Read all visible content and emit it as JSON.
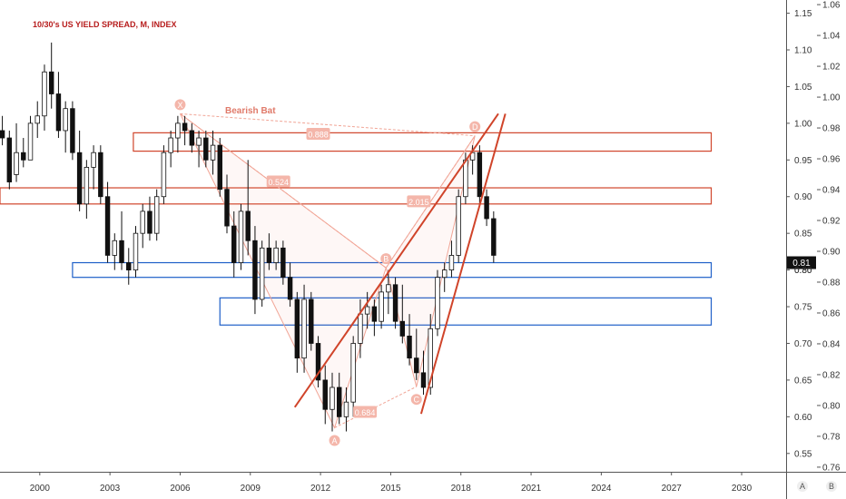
{
  "title": "10/30's US YIELD SPREAD, M, INDEX",
  "chart_data": {
    "type": "candlestick",
    "x_axis": {
      "ticks": [
        "2000",
        "2003",
        "2006",
        "2009",
        "2012",
        "2015",
        "2018",
        "2021",
        "2024",
        "2027",
        "2030"
      ],
      "range": [
        1998.3,
        2031.9
      ]
    },
    "left_scale": {
      "ticks": [
        0.55,
        0.6,
        0.65,
        0.7,
        0.75,
        0.8,
        0.85,
        0.9,
        0.95,
        1.0,
        1.05,
        1.1,
        1.15
      ],
      "range": [
        0.525,
        1.168
      ]
    },
    "right_scale": {
      "ticks": [
        0.76,
        0.78,
        0.8,
        0.82,
        0.84,
        0.86,
        0.88,
        0.9,
        0.92,
        0.94,
        0.96,
        0.98,
        1.0,
        1.02,
        1.04,
        1.06
      ],
      "range": [
        0.757,
        1.063
      ]
    },
    "last_price": "0.81",
    "overlay_price_tag": "0.80",
    "candles": [
      [
        1998.4,
        0.99,
        1.01,
        0.97,
        0.98
      ],
      [
        1998.7,
        0.98,
        0.99,
        0.91,
        0.92
      ],
      [
        1999.0,
        0.93,
        1.0,
        0.92,
        0.96
      ],
      [
        1999.3,
        0.96,
        0.98,
        0.94,
        0.95
      ],
      [
        1999.6,
        0.95,
        1.01,
        0.95,
        1.0
      ],
      [
        1999.9,
        1.0,
        1.03,
        0.98,
        1.01
      ],
      [
        2000.2,
        1.01,
        1.08,
        0.99,
        1.07
      ],
      [
        2000.5,
        1.07,
        1.11,
        1.02,
        1.04
      ],
      [
        2000.8,
        1.04,
        1.07,
        0.98,
        0.99
      ],
      [
        2001.1,
        0.99,
        1.03,
        0.96,
        1.02
      ],
      [
        2001.4,
        1.02,
        1.03,
        0.95,
        0.96
      ],
      [
        2001.7,
        0.96,
        0.99,
        0.88,
        0.89
      ],
      [
        2002.0,
        0.89,
        0.95,
        0.87,
        0.94
      ],
      [
        2002.3,
        0.94,
        0.97,
        0.91,
        0.96
      ],
      [
        2002.6,
        0.96,
        0.97,
        0.89,
        0.9
      ],
      [
        2002.9,
        0.9,
        0.92,
        0.81,
        0.82
      ],
      [
        2003.2,
        0.82,
        0.85,
        0.8,
        0.84
      ],
      [
        2003.5,
        0.84,
        0.88,
        0.8,
        0.81
      ],
      [
        2003.8,
        0.81,
        0.83,
        0.78,
        0.8
      ],
      [
        2004.1,
        0.8,
        0.86,
        0.79,
        0.85
      ],
      [
        2004.4,
        0.85,
        0.89,
        0.83,
        0.88
      ],
      [
        2004.7,
        0.88,
        0.9,
        0.84,
        0.85
      ],
      [
        2005.0,
        0.85,
        0.91,
        0.84,
        0.9
      ],
      [
        2005.3,
        0.9,
        0.97,
        0.89,
        0.96
      ],
      [
        2005.6,
        0.96,
        0.99,
        0.94,
        0.98
      ],
      [
        2005.9,
        0.98,
        1.01,
        0.96,
        1.0
      ],
      [
        2006.2,
        1.0,
        1.01,
        0.97,
        0.99
      ],
      [
        2006.5,
        0.99,
        1.0,
        0.96,
        0.97
      ],
      [
        2006.8,
        0.97,
        0.99,
        0.94,
        0.98
      ],
      [
        2007.1,
        0.98,
        0.99,
        0.94,
        0.95
      ],
      [
        2007.4,
        0.95,
        0.99,
        0.93,
        0.97
      ],
      [
        2007.7,
        0.97,
        0.98,
        0.9,
        0.91
      ],
      [
        2008.0,
        0.91,
        0.93,
        0.85,
        0.86
      ],
      [
        2008.3,
        0.86,
        0.88,
        0.79,
        0.81
      ],
      [
        2008.6,
        0.81,
        0.89,
        0.8,
        0.88
      ],
      [
        2008.9,
        0.88,
        0.95,
        0.82,
        0.84
      ],
      [
        2009.2,
        0.84,
        0.86,
        0.74,
        0.76
      ],
      [
        2009.5,
        0.76,
        0.84,
        0.75,
        0.83
      ],
      [
        2009.8,
        0.83,
        0.85,
        0.8,
        0.81
      ],
      [
        2010.1,
        0.81,
        0.84,
        0.8,
        0.83
      ],
      [
        2010.4,
        0.83,
        0.84,
        0.78,
        0.79
      ],
      [
        2010.7,
        0.79,
        0.81,
        0.75,
        0.76
      ],
      [
        2011.0,
        0.76,
        0.77,
        0.66,
        0.68
      ],
      [
        2011.3,
        0.68,
        0.78,
        0.66,
        0.76
      ],
      [
        2011.6,
        0.76,
        0.77,
        0.69,
        0.7
      ],
      [
        2011.9,
        0.7,
        0.71,
        0.64,
        0.65
      ],
      [
        2012.2,
        0.65,
        0.67,
        0.59,
        0.61
      ],
      [
        2012.5,
        0.61,
        0.66,
        0.58,
        0.64
      ],
      [
        2012.8,
        0.64,
        0.66,
        0.59,
        0.6
      ],
      [
        2013.1,
        0.6,
        0.64,
        0.58,
        0.62
      ],
      [
        2013.4,
        0.62,
        0.71,
        0.6,
        0.7
      ],
      [
        2013.7,
        0.7,
        0.76,
        0.68,
        0.74
      ],
      [
        2014.0,
        0.74,
        0.77,
        0.72,
        0.75
      ],
      [
        2014.3,
        0.75,
        0.76,
        0.71,
        0.73
      ],
      [
        2014.6,
        0.73,
        0.78,
        0.72,
        0.77
      ],
      [
        2014.9,
        0.77,
        0.8,
        0.74,
        0.78
      ],
      [
        2015.2,
        0.78,
        0.79,
        0.72,
        0.73
      ],
      [
        2015.5,
        0.73,
        0.78,
        0.7,
        0.71
      ],
      [
        2015.8,
        0.71,
        0.74,
        0.67,
        0.68
      ],
      [
        2016.1,
        0.68,
        0.72,
        0.65,
        0.66
      ],
      [
        2016.4,
        0.66,
        0.69,
        0.63,
        0.64
      ],
      [
        2016.7,
        0.64,
        0.74,
        0.63,
        0.72
      ],
      [
        2017.0,
        0.72,
        0.8,
        0.71,
        0.79
      ],
      [
        2017.3,
        0.79,
        0.81,
        0.77,
        0.8
      ],
      [
        2017.6,
        0.8,
        0.84,
        0.79,
        0.82
      ],
      [
        2017.9,
        0.82,
        0.91,
        0.81,
        0.9
      ],
      [
        2018.2,
        0.9,
        0.96,
        0.89,
        0.95
      ],
      [
        2018.5,
        0.95,
        0.97,
        0.93,
        0.96
      ],
      [
        2018.8,
        0.96,
        0.97,
        0.89,
        0.9
      ],
      [
        2019.1,
        0.9,
        0.91,
        0.86,
        0.87
      ],
      [
        2019.4,
        0.87,
        0.88,
        0.81,
        0.82
      ]
    ],
    "horizontal_zones": [
      {
        "color": "#d0442a",
        "y_from": 0.962,
        "y_to": 0.987,
        "x_from": 2004.0,
        "x_to": 2028.7
      },
      {
        "color": "#d0442a",
        "y_from": 0.89,
        "y_to": 0.912,
        "x_from": 1998.3,
        "x_to": 2028.7
      },
      {
        "color": "#1e5fc8",
        "y_from": 0.79,
        "y_to": 0.81,
        "x_from": 2001.4,
        "x_to": 2028.7
      },
      {
        "color": "#1e5fc8",
        "y_from": 0.725,
        "y_to": 0.762,
        "x_from": 2007.7,
        "x_to": 2028.7
      }
    ],
    "trend_lines": [
      {
        "x1": 2010.9,
        "y1": 0.613,
        "x2": 2019.6,
        "y2": 1.013
      },
      {
        "x1": 2016.3,
        "y1": 0.604,
        "x2": 2019.9,
        "y2": 1.013
      }
    ],
    "harmonic": {
      "name": "Bearish Bat",
      "points": [
        {
          "label": "X",
          "x": 2006.0,
          "y": 1.013
        },
        {
          "label": "A",
          "x": 2012.6,
          "y": 0.585
        },
        {
          "label": "B",
          "x": 2014.8,
          "y": 0.803
        },
        {
          "label": "C",
          "x": 2016.1,
          "y": 0.641
        },
        {
          "label": "D",
          "x": 2018.6,
          "y": 0.983
        }
      ],
      "ratios": [
        {
          "text": "0.888",
          "x": 2011.9,
          "y": 0.985
        },
        {
          "text": "0.524",
          "x": 2010.2,
          "y": 0.92
        },
        {
          "text": "0.684",
          "x": 2013.9,
          "y": 0.606
        },
        {
          "text": "2.015",
          "x": 2016.2,
          "y": 0.893
        }
      ]
    }
  },
  "corner_buttons": {
    "auto": "A",
    "both": "B"
  }
}
